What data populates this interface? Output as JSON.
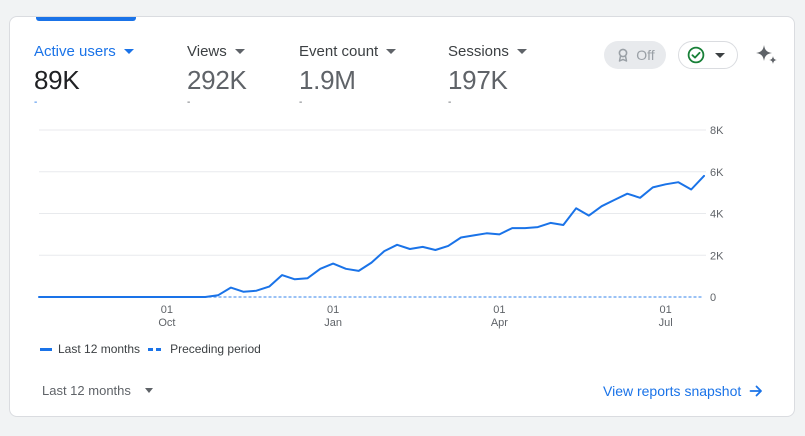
{
  "metrics": [
    {
      "label": "Active users",
      "value": "89K",
      "delta": "-",
      "active": true
    },
    {
      "label": "Views",
      "value": "292K",
      "delta": "-",
      "active": false
    },
    {
      "label": "Event count",
      "value": "1.9M",
      "delta": "-",
      "active": false
    },
    {
      "label": "Sessions",
      "value": "197K",
      "delta": "-",
      "active": false
    }
  ],
  "toolbar": {
    "anomaly_label": "Off",
    "anomaly_icon": "award-ribbon-icon",
    "status_icon": "check-circle-icon",
    "insights_icon": "sparkle-icon"
  },
  "colors": {
    "accent": "#1a73e8",
    "status_green": "#188038",
    "grid": "#e8eaed"
  },
  "legend": {
    "current": "Last 12 months",
    "previous": "Preceding period"
  },
  "footer": {
    "period_label": "Last 12 months",
    "link_label": "View reports snapshot"
  },
  "chart_data": {
    "type": "line",
    "ylim": [
      0,
      8000
    ],
    "y_ticks": [
      {
        "value": 0,
        "label": "0"
      },
      {
        "value": 2000,
        "label": "2K"
      },
      {
        "value": 4000,
        "label": "4K"
      },
      {
        "value": 6000,
        "label": "6K"
      },
      {
        "value": 8000,
        "label": "8K"
      }
    ],
    "x_ticks": [
      {
        "index": 10,
        "day": "01",
        "month": "Oct"
      },
      {
        "index": 23,
        "day": "01",
        "month": "Jan"
      },
      {
        "index": 36,
        "day": "01",
        "month": "Apr"
      },
      {
        "index": 49,
        "day": "01",
        "month": "Jul"
      }
    ],
    "series": [
      {
        "name": "Last 12 months",
        "style": "solid",
        "values": [
          0,
          0,
          0,
          0,
          0,
          0,
          0,
          0,
          0,
          0,
          0,
          0,
          0,
          0,
          80,
          450,
          250,
          300,
          500,
          1050,
          850,
          900,
          1350,
          1600,
          1350,
          1250,
          1650,
          2200,
          2500,
          2300,
          2400,
          2250,
          2450,
          2850,
          2950,
          3050,
          3000,
          3300,
          3300,
          3350,
          3550,
          3450,
          4250,
          3900,
          4350,
          4650,
          4950,
          4750,
          5250,
          5400,
          5500,
          5150,
          5800
        ]
      },
      {
        "name": "Preceding period",
        "style": "dashed",
        "values": [
          0,
          0,
          0,
          0,
          0,
          0,
          0,
          0,
          0,
          0,
          0,
          0,
          0,
          0,
          0,
          0,
          0,
          0,
          0,
          0,
          0,
          0,
          0,
          0,
          0,
          0,
          0,
          0,
          0,
          0,
          0,
          0,
          0,
          0,
          0,
          0,
          0,
          0,
          0,
          0,
          0,
          0,
          0,
          0,
          0,
          0,
          0,
          0,
          0,
          0,
          0,
          0,
          0
        ]
      }
    ]
  }
}
